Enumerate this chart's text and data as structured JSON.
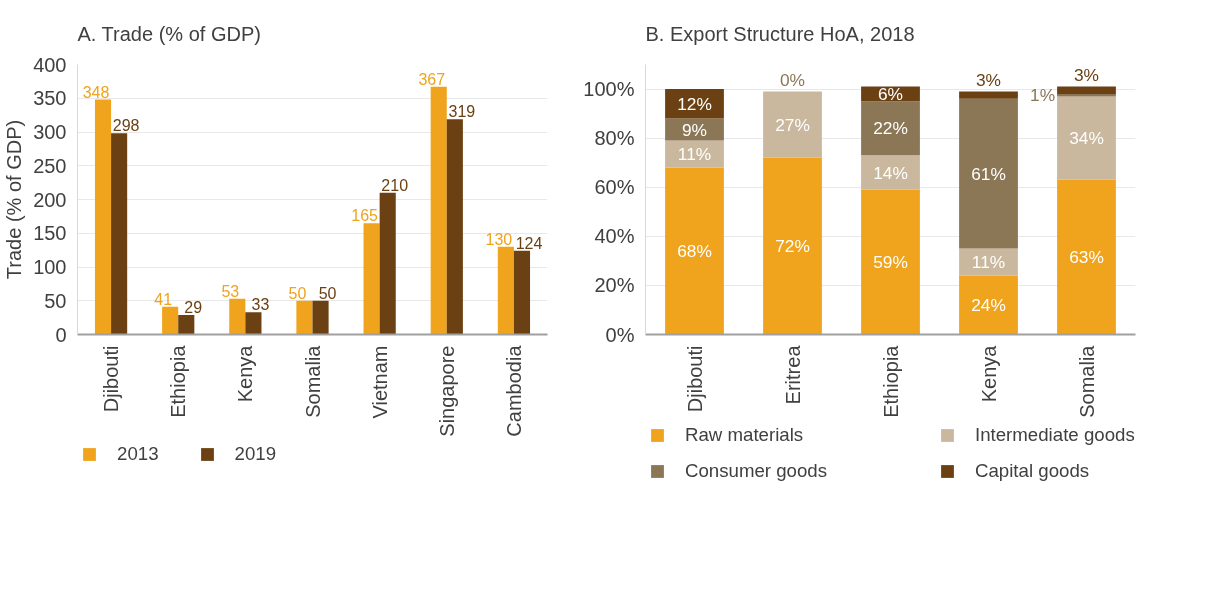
{
  "chart_data": [
    {
      "type": "bar",
      "title": "A. Trade (% of GDP)",
      "ylabel": "Trade (% of GDP)",
      "categories": [
        "Djibouti",
        "Ethiopia",
        "Kenya",
        "Somalia",
        "Vietnam",
        "Singapore",
        "Cambodia"
      ],
      "series": [
        {
          "name": "2013",
          "color": "#f0a31c",
          "values": [
            348,
            41,
            53,
            50,
            165,
            367,
            130
          ]
        },
        {
          "name": "2019",
          "color": "#6b4114",
          "values": [
            298,
            29,
            33,
            50,
            210,
            319,
            124
          ]
        }
      ],
      "ylim": [
        0,
        400
      ],
      "yticks": [
        0,
        50,
        100,
        150,
        200,
        250,
        300,
        350,
        400
      ],
      "grid": "y",
      "legend": "bottom",
      "data_labels": true
    },
    {
      "type": "bar",
      "title": "B. Export Structure HoA, 2018",
      "stacked": true,
      "categories": [
        "Djibouti",
        "Eritrea",
        "Ethiopia",
        "Kenya",
        "Somalia"
      ],
      "series": [
        {
          "name": "Raw materials",
          "color": "#f0a31c",
          "values": [
            68,
            72,
            59,
            24,
            63
          ],
          "value_labels": [
            "68%",
            "72%",
            "59%",
            "24%",
            "63%"
          ]
        },
        {
          "name": "Intermediate goods",
          "color": "#c9b89e",
          "values": [
            11,
            27,
            14,
            11,
            34
          ],
          "value_labels": [
            "11%",
            "27%",
            "14%",
            "11%",
            "34%"
          ]
        },
        {
          "name": "Consumer goods",
          "color": "#8b7755",
          "values": [
            9,
            0,
            22,
            61,
            1
          ],
          "value_labels": [
            "9%",
            "0%",
            "22%",
            "61%",
            "1%"
          ]
        },
        {
          "name": "Capital goods",
          "color": "#6b4114",
          "values": [
            12,
            null,
            6,
            3,
            3
          ],
          "value_labels": [
            "12%",
            null,
            "6%",
            "3%",
            "3%"
          ]
        }
      ],
      "ylim": [
        0,
        110
      ],
      "yticks": [
        {
          "value": 0,
          "label": "0%"
        },
        {
          "value": 20,
          "label": "20%"
        },
        {
          "value": 40,
          "label": "40%"
        },
        {
          "value": 60,
          "label": "60%"
        },
        {
          "value": 80,
          "label": "80%"
        },
        {
          "value": 100,
          "label": "100%"
        }
      ],
      "grid": "y",
      "legend": "bottom"
    }
  ]
}
